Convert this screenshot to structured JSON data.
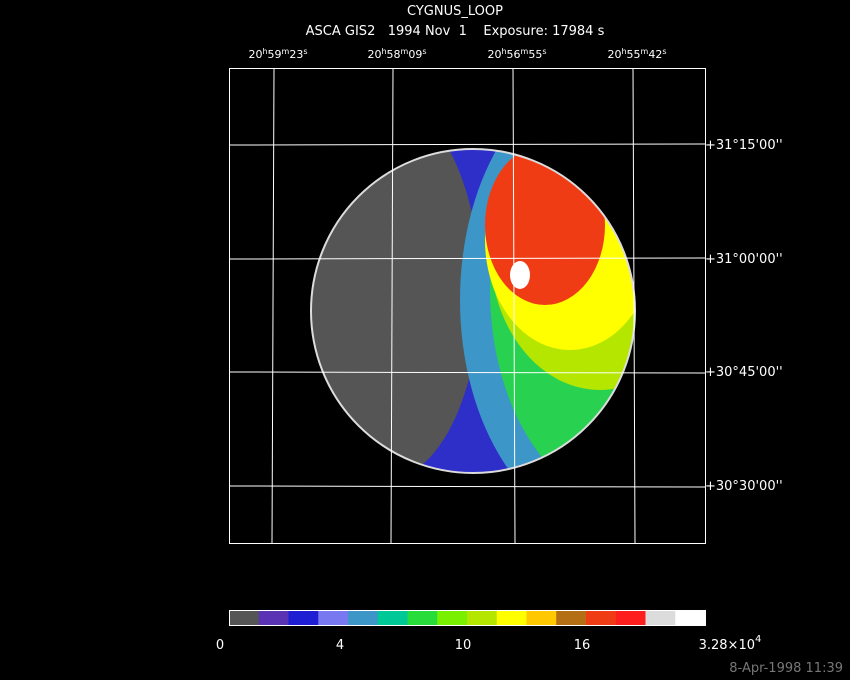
{
  "header": {
    "title": "CYGNUS_LOOP",
    "subtitle": "ASCA GIS2   1994 Nov  1    Exposure: 17984 s"
  },
  "ra_labels": [
    [
      "20",
      "h",
      "59",
      "m",
      "23",
      "s"
    ],
    [
      "20",
      "h",
      "58",
      "m",
      "09",
      "s"
    ],
    [
      "20",
      "h",
      "56",
      "m",
      "55",
      "s"
    ],
    [
      "20",
      "h",
      "55",
      "m",
      "42",
      "s"
    ]
  ],
  "dec_labels": [
    "+31°15'00''",
    "+31°00'00''",
    "+30°45'00''",
    "+30°30'00''"
  ],
  "colorbar": {
    "colors": [
      "#555555",
      "#5a32b4",
      "#1e1ed2",
      "#7878f0",
      "#3c96c8",
      "#00c896",
      "#28dc3c",
      "#78f000",
      "#b4e600",
      "#ffff00",
      "#ffc800",
      "#b46e14",
      "#f03c14",
      "#ff1e1e",
      "#dcdcdc",
      "#ffffff"
    ],
    "labels": [
      "0",
      "4",
      "10",
      "16"
    ],
    "max_label": [
      "3.28×10",
      "4"
    ]
  },
  "footer": "8-Apr-1998 11:39"
}
